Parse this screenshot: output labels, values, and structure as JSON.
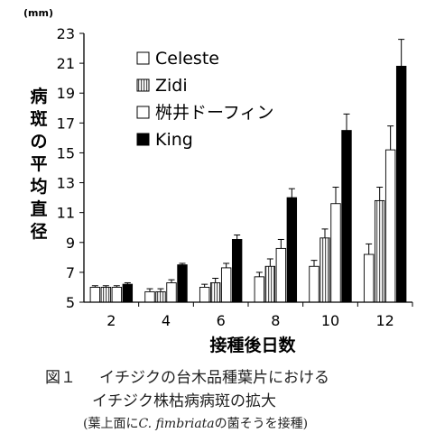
{
  "unit_label": "(mm)",
  "ylabel": "病斑の平均直径",
  "xlabel": "接種後日数",
  "caption": {
    "figure_no": "図１",
    "line1": "イチジクの台木品種葉片における",
    "line2": "イチジク株枯病病斑の拡大",
    "line3_pre": "(葉上面に",
    "line3_species": "C. fimbriata",
    "line3_post": "の菌そうを接種)"
  },
  "chart_data": {
    "type": "bar",
    "categories": [
      "2",
      "4",
      "6",
      "8",
      "10",
      "12"
    ],
    "ylim": [
      5,
      23
    ],
    "yticks": [
      5,
      7,
      9,
      11,
      13,
      15,
      17,
      19,
      21,
      23
    ],
    "legend_position": "top-left",
    "series": [
      {
        "name": "Celeste",
        "fill": "#ffffff",
        "pattern": "solid",
        "values": [
          6.0,
          5.7,
          6.0,
          6.7,
          7.4,
          8.2
        ],
        "errors": [
          0.1,
          0.2,
          0.2,
          0.3,
          0.4,
          0.7
        ]
      },
      {
        "name": "Zidi",
        "fill": "#d9d9d9",
        "pattern": "vertical-lines",
        "values": [
          6.0,
          5.7,
          6.3,
          7.4,
          9.3,
          11.8
        ],
        "errors": [
          0.1,
          0.2,
          0.3,
          0.5,
          0.6,
          0.9
        ]
      },
      {
        "name": "桝井ドーフィン",
        "fill": "#ffffff",
        "pattern": "solid",
        "values": [
          6.0,
          6.3,
          7.3,
          8.6,
          11.6,
          15.2
        ],
        "errors": [
          0.1,
          0.2,
          0.3,
          0.6,
          1.1,
          1.6
        ]
      },
      {
        "name": "King",
        "fill": "#000000",
        "pattern": "solid",
        "values": [
          6.2,
          7.5,
          9.2,
          12.0,
          16.5,
          20.8
        ],
        "errors": [
          0.1,
          0.1,
          0.3,
          0.6,
          1.1,
          1.8
        ]
      }
    ]
  }
}
